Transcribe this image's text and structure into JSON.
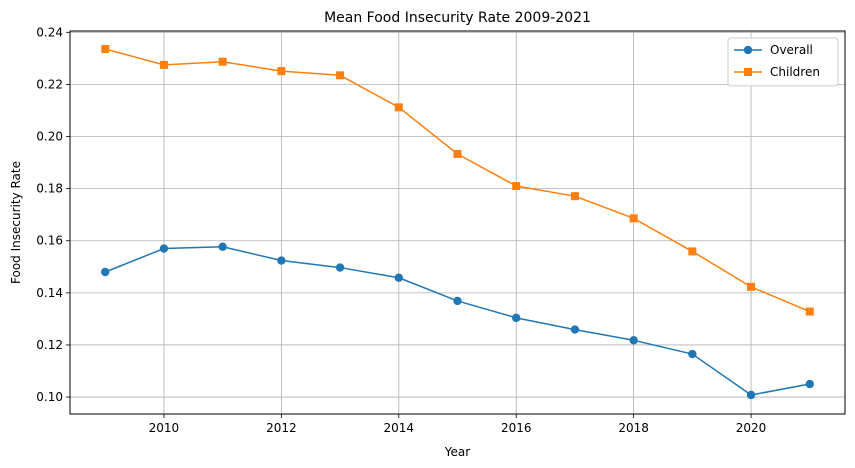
{
  "chart_data": {
    "type": "line",
    "title": "Mean Food Insecurity Rate 2009-2021",
    "xlabel": "Year",
    "ylabel": "Food Insecurity Rate",
    "x": [
      2009,
      2010,
      2011,
      2012,
      2013,
      2014,
      2015,
      2016,
      2017,
      2018,
      2019,
      2020,
      2021
    ],
    "xlim": [
      2008.4,
      2021.6
    ],
    "ylim": [
      0.0935,
      0.2405
    ],
    "xticks": [
      2010,
      2012,
      2014,
      2016,
      2018,
      2020
    ],
    "yticks": [
      0.1,
      0.12,
      0.14,
      0.16,
      0.18,
      0.2,
      0.22,
      0.24
    ],
    "ytick_labels": [
      "0.10",
      "0.12",
      "0.14",
      "0.16",
      "0.18",
      "0.20",
      "0.22",
      "0.24"
    ],
    "grid": true,
    "legend_position": "top-right",
    "series": [
      {
        "name": "Overall",
        "color": "#1f77b4",
        "marker": "circle",
        "values": [
          0.148,
          0.157,
          0.1577,
          0.1524,
          0.1497,
          0.1458,
          0.1369,
          0.1304,
          0.1259,
          0.1218,
          0.1165,
          0.1008,
          0.105
        ]
      },
      {
        "name": "Children",
        "color": "#ff7f0e",
        "marker": "square",
        "values": [
          0.2336,
          0.2275,
          0.2287,
          0.2251,
          0.2235,
          0.2112,
          0.1933,
          0.181,
          0.1771,
          0.1686,
          0.1559,
          0.1423,
          0.1328
        ]
      }
    ]
  }
}
